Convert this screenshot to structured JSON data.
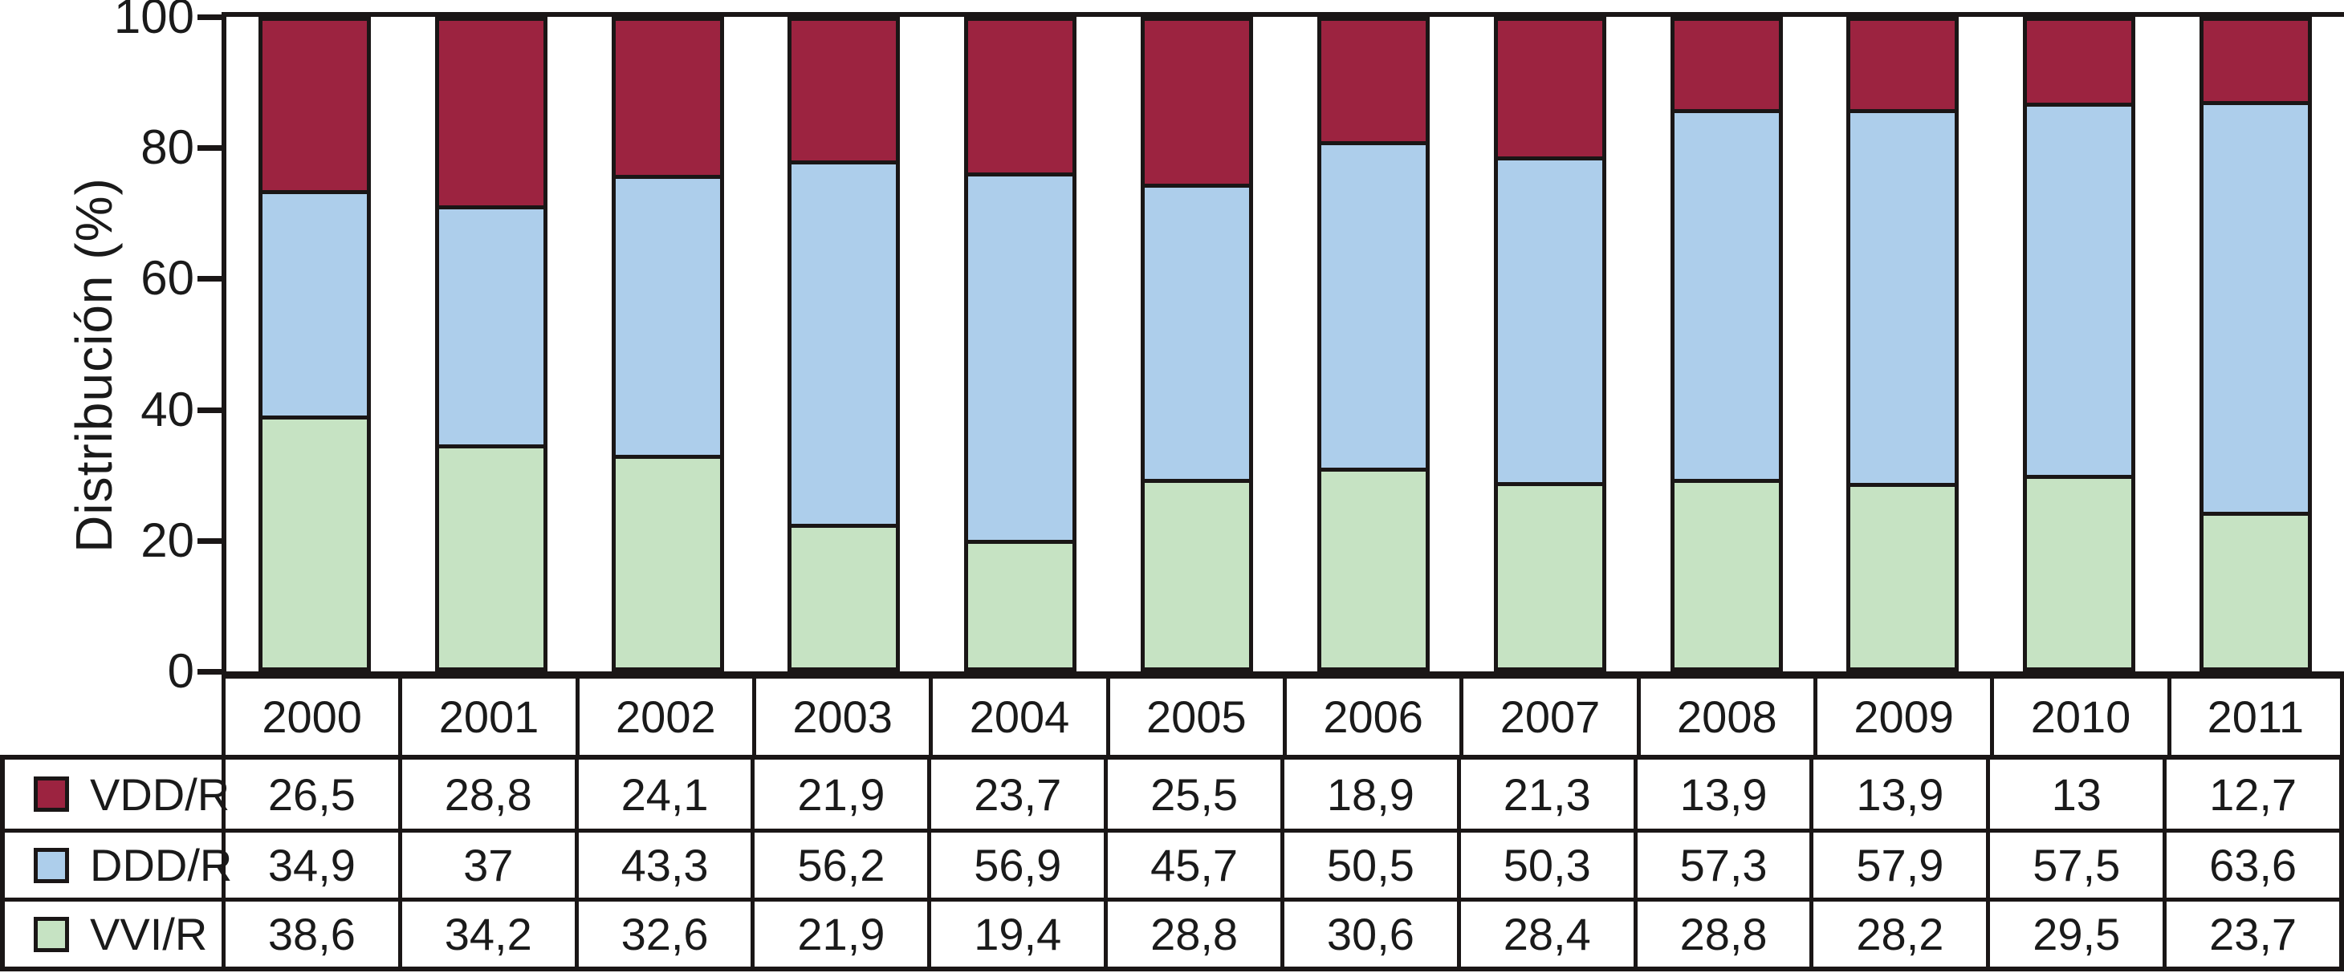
{
  "chart_data": {
    "type": "bar",
    "stacked": true,
    "title": "",
    "xlabel": "",
    "ylabel": "Distribución (%)",
    "ylim": [
      0,
      100
    ],
    "yticks": [
      "0",
      "20",
      "40",
      "60",
      "80",
      "100"
    ],
    "grid": false,
    "legend_position": "table-left-column",
    "categories": [
      "2000",
      "2001",
      "2002",
      "2003",
      "2004",
      "2005",
      "2006",
      "2007",
      "2008",
      "2009",
      "2010",
      "2011"
    ],
    "series": [
      {
        "name": "VDD/R",
        "color": "#9C2340",
        "values": [
          26.5,
          28.8,
          24.1,
          21.9,
          23.7,
          25.5,
          18.9,
          21.3,
          13.9,
          13.9,
          13,
          12.7
        ],
        "labels": [
          "26,5",
          "28,8",
          "24,1",
          "21,9",
          "23,7",
          "25,5",
          "18,9",
          "21,3",
          "13,9",
          "13,9",
          "13",
          "12,7"
        ]
      },
      {
        "name": "DDD/R",
        "color": "#ADCEEB",
        "values": [
          34.9,
          37,
          43.3,
          56.2,
          56.9,
          45.7,
          50.5,
          50.3,
          57.3,
          57.9,
          57.5,
          63.6
        ],
        "labels": [
          "34,9",
          "37",
          "43,3",
          "56,2",
          "56,9",
          "45,7",
          "50,5",
          "50,3",
          "57,3",
          "57,9",
          "57,5",
          "63,6"
        ]
      },
      {
        "name": "VVI/R",
        "color": "#C6E3C3",
        "values": [
          38.6,
          34.2,
          32.6,
          21.9,
          19.4,
          28.8,
          30.6,
          28.4,
          28.8,
          28.2,
          29.5,
          23.7
        ],
        "labels": [
          "38,6",
          "34,2",
          "32,6",
          "21,9",
          "19,4",
          "28,8",
          "30,6",
          "28,4",
          "28,8",
          "28,2",
          "29,5",
          "23,7"
        ]
      }
    ],
    "stack_order_bottom_to_top": [
      "VVI/R",
      "DDD/R",
      "VDD/R"
    ]
  },
  "colors": {
    "line": "#1a1616",
    "background": "#ffffff",
    "text": "#1a1a1a"
  }
}
